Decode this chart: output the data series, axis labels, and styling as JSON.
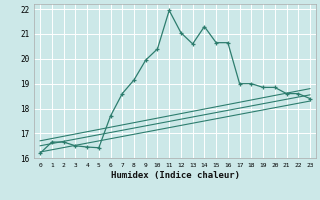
{
  "xlabel": "Humidex (Indice chaleur)",
  "ylabel": "",
  "bg_color": "#cce8e8",
  "grid_color": "#ffffff",
  "line_color": "#2d7d6e",
  "xlim": [
    -0.5,
    23.5
  ],
  "ylim": [
    16,
    22.2
  ],
  "xticks": [
    0,
    1,
    2,
    3,
    4,
    5,
    6,
    7,
    8,
    9,
    10,
    11,
    12,
    13,
    14,
    15,
    16,
    17,
    18,
    19,
    20,
    21,
    22,
    23
  ],
  "yticks": [
    16,
    17,
    18,
    19,
    20,
    21,
    22
  ],
  "series": [
    {
      "x": [
        0,
        1,
        2,
        3,
        4,
        5,
        6,
        7,
        8,
        9,
        10,
        11,
        12,
        13,
        14,
        15,
        16,
        17,
        18,
        19,
        20,
        21,
        22,
        23
      ],
      "y": [
        16.2,
        16.65,
        16.65,
        16.5,
        16.45,
        16.42,
        17.7,
        18.6,
        19.15,
        19.95,
        20.4,
        21.95,
        21.05,
        20.6,
        21.3,
        20.65,
        20.65,
        19.0,
        19.0,
        18.85,
        18.85,
        18.6,
        18.6,
        18.4
      ],
      "marker": true,
      "lw": 0.9
    },
    {
      "x": [
        0,
        23
      ],
      "y": [
        16.7,
        18.8
      ],
      "marker": false,
      "lw": 0.8
    },
    {
      "x": [
        0,
        23
      ],
      "y": [
        16.5,
        18.55
      ],
      "marker": false,
      "lw": 0.8
    },
    {
      "x": [
        0,
        23
      ],
      "y": [
        16.25,
        18.3
      ],
      "marker": false,
      "lw": 0.8
    }
  ]
}
